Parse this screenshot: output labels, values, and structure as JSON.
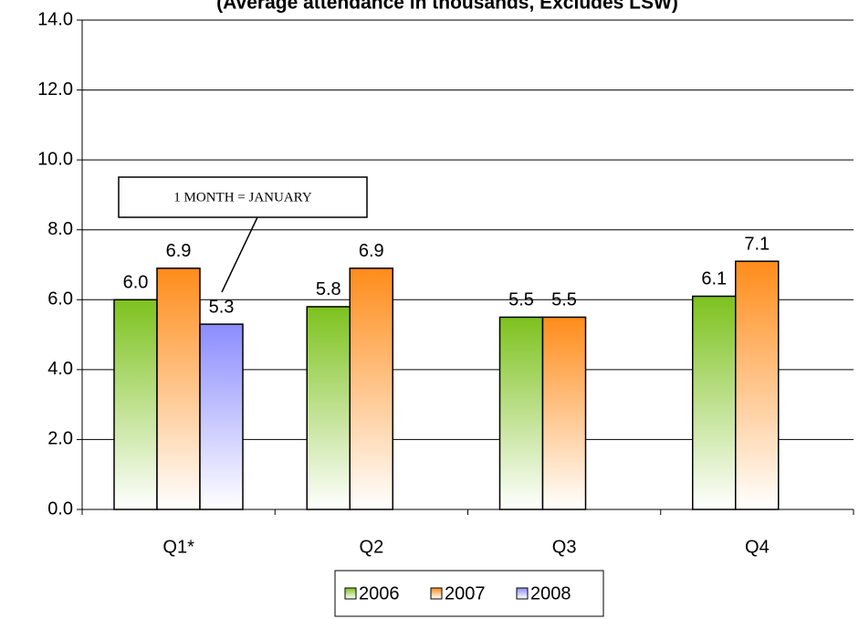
{
  "chart_data": {
    "type": "bar",
    "title": "(Average attendance in thousands, Excludes LSW)",
    "categories": [
      "Q1*",
      "Q2",
      "Q3",
      "Q4"
    ],
    "series": [
      {
        "name": "2006",
        "color": "#7dc21e",
        "values": [
          6.0,
          5.8,
          5.5,
          6.1
        ],
        "value_labels": [
          "6.0",
          "5.8",
          "5.5",
          "6.1"
        ]
      },
      {
        "name": "2007",
        "color": "#ff8c1a",
        "values": [
          6.9,
          6.9,
          5.5,
          7.1
        ],
        "value_labels": [
          "6.9",
          "6.9",
          "5.5",
          "7.1"
        ]
      },
      {
        "name": "2008",
        "color": "#8c8cff",
        "values": [
          5.3,
          null,
          null,
          null
        ],
        "value_labels": [
          "5.3",
          null,
          null,
          null
        ]
      }
    ],
    "ylim": [
      0,
      14
    ],
    "yticks": [
      {
        "value": 0,
        "label": "0.0"
      },
      {
        "value": 2,
        "label": "2.0"
      },
      {
        "value": 4,
        "label": "4.0"
      },
      {
        "value": 6,
        "label": "6.0"
      },
      {
        "value": 8,
        "label": "8.0"
      },
      {
        "value": 10,
        "label": "10.0"
      },
      {
        "value": 12,
        "label": "12.0"
      },
      {
        "value": 14,
        "label": "14.0"
      }
    ],
    "grid": true,
    "legend": "bottom",
    "annotation": "1 MONTH = JANUARY"
  }
}
